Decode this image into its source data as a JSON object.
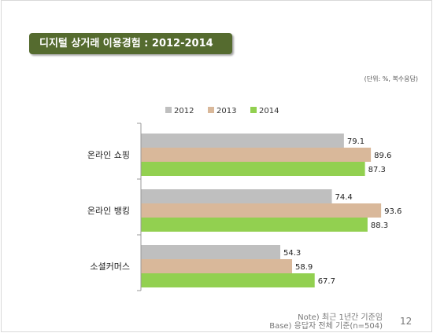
{
  "slide": {
    "title": "디지털 상거래 이용경험 : 2012-2014",
    "unit_note": "(단위:  %, 복수응답)",
    "footnote_1": "Note) 최근 1년간 기준임",
    "footnote_2": "Base) 응답자 전체 기준(n=504)",
    "page_number": "12"
  },
  "chart_data": {
    "type": "bar",
    "orientation": "horizontal",
    "title": "",
    "xlabel": "",
    "ylabel": "",
    "categories": [
      "온라인 쇼핑",
      "온라인 뱅킹",
      "소셜커머스"
    ],
    "series": [
      {
        "name": "2012",
        "values": [
          79.1,
          74.4,
          54.3
        ],
        "color": "#bfbfbf"
      },
      {
        "name": "2013",
        "values": [
          89.6,
          93.6,
          58.9
        ],
        "color": "#d9b89a"
      },
      {
        "name": "2014",
        "values": [
          87.3,
          88.3,
          67.7
        ],
        "color": "#92d050"
      }
    ],
    "xlim": [
      0,
      100
    ],
    "grid": false,
    "legend_position": "top",
    "data_labels": true
  }
}
